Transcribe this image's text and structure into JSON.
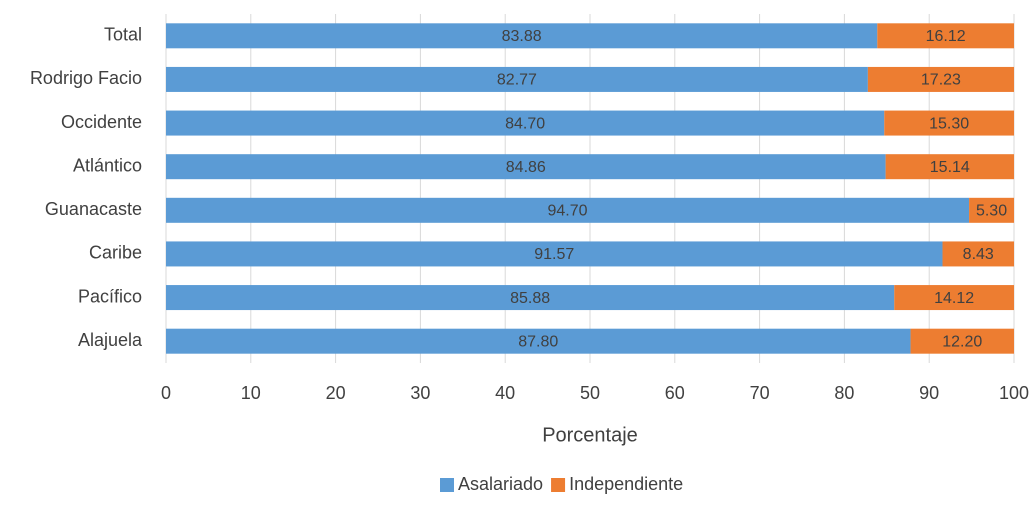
{
  "chart_data": {
    "type": "bar",
    "orientation": "horizontal",
    "stacked": true,
    "xlabel": "Porcentaje",
    "categories": [
      "Total",
      "Rodrigo Facio",
      "Occidente",
      "Atlántico",
      "Guanacaste",
      "Caribe",
      "Pacífico",
      "Alajuela"
    ],
    "series": [
      {
        "name": "Asalariado",
        "color": "#5b9bd5",
        "values": [
          83.88,
          82.77,
          84.7,
          84.86,
          94.7,
          91.57,
          85.88,
          87.8
        ],
        "value_labels": [
          "83.88",
          "82.77",
          "84.70",
          "84.86",
          "94.70",
          "91.57",
          "85.88",
          "87.80"
        ]
      },
      {
        "name": "Independiente",
        "color": "#ed7d31",
        "values": [
          16.12,
          17.23,
          15.3,
          15.14,
          5.3,
          8.43,
          14.12,
          12.2
        ],
        "value_labels": [
          "16.12",
          "17.23",
          "15.30",
          "15.14",
          "5.30",
          "8.43",
          "14.12",
          "12.20"
        ]
      }
    ],
    "xlim": [
      0,
      100
    ],
    "xticks": [
      0,
      10,
      20,
      30,
      40,
      50,
      60,
      70,
      80,
      90,
      100
    ],
    "grid": true,
    "legend": "bottom"
  }
}
